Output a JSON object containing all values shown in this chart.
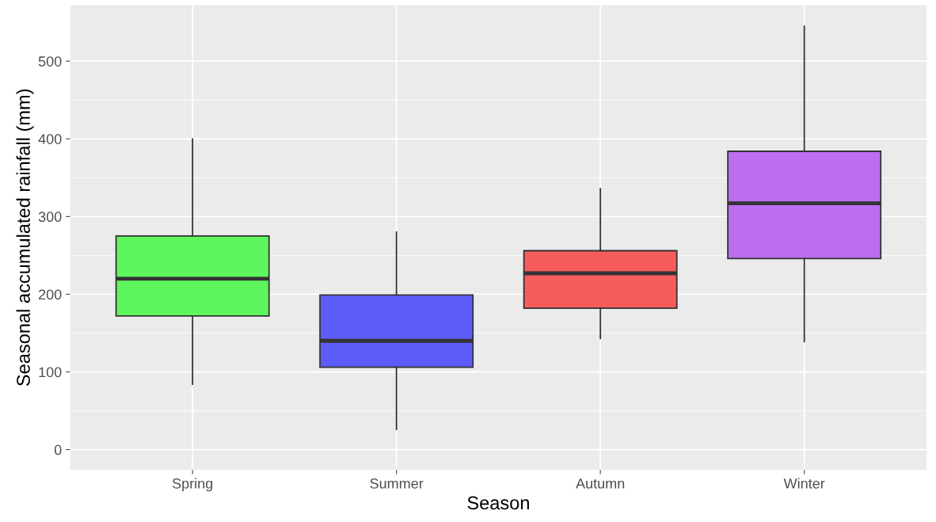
{
  "chart_data": {
    "type": "box",
    "xlabel": "Season",
    "ylabel": "Seasonal accumulated rainfall (mm)",
    "categories": [
      "Spring",
      "Summer",
      "Autumn",
      "Winter"
    ],
    "colors": [
      "#5ff55f",
      "#5c5cfb",
      "#f75c5c",
      "#bb6ff0"
    ],
    "boxes": [
      {
        "low": 84,
        "q1": 172,
        "median": 220,
        "q3": 275,
        "high": 400
      },
      {
        "low": 26,
        "q1": 106,
        "median": 140,
        "q3": 199,
        "high": 280
      },
      {
        "low": 143,
        "q1": 182,
        "median": 227,
        "q3": 256,
        "high": 336
      },
      {
        "low": 139,
        "q1": 246,
        "median": 317,
        "q3": 384,
        "high": 545
      }
    ],
    "ylim": [
      -26,
      572
    ],
    "yticks": [
      0,
      100,
      200,
      300,
      400,
      500
    ],
    "grid": true
  }
}
